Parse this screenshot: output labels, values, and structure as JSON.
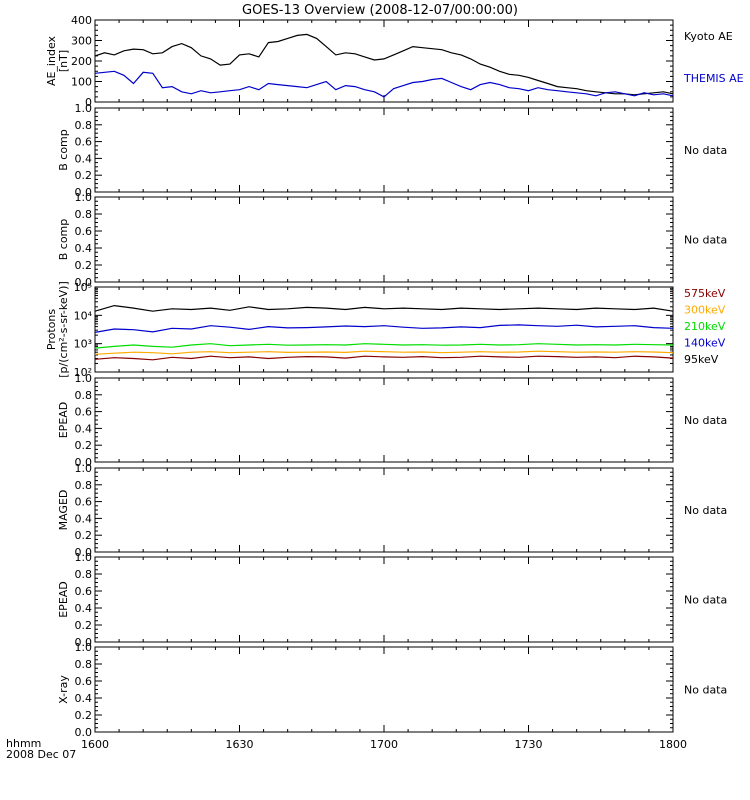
{
  "title": "GOES-13 Overview (2008-12-07/00:00:00)",
  "xaxis": {
    "corner_label_line1": "hhmm",
    "corner_label_line2": "2008 Dec 07",
    "range": [
      0,
      120
    ],
    "ticks": [
      {
        "value": 0,
        "label": "1600"
      },
      {
        "value": 30,
        "label": "1630"
      },
      {
        "value": 60,
        "label": "1700"
      },
      {
        "value": 90,
        "label": "1730"
      },
      {
        "value": 120,
        "label": "1800"
      }
    ]
  },
  "colors": {
    "black": "#000000",
    "blue": "#0000cc",
    "green": "#00dd00",
    "orange": "#ffaa00",
    "darkred": "#880000"
  },
  "chart_data": [
    {
      "type": "line",
      "ylabel_lines": [
        "AE_index",
        "[nT]"
      ],
      "yscale": "linear",
      "ylim": [
        0,
        400
      ],
      "yticks": [
        "0",
        "100",
        "200",
        "300",
        "400"
      ],
      "series": [
        {
          "name": "Kyoto AE",
          "color": "#000000",
          "x": [
            0,
            2,
            4,
            6,
            8,
            10,
            12,
            14,
            16,
            18,
            20,
            22,
            24,
            26,
            28,
            30,
            32,
            34,
            36,
            38,
            40,
            42,
            44,
            46,
            48,
            50,
            52,
            54,
            56,
            58,
            60,
            62,
            64,
            66,
            68,
            70,
            72,
            74,
            76,
            78,
            80,
            82,
            84,
            86,
            88,
            90,
            92,
            94,
            96,
            98,
            100,
            102,
            104,
            106,
            108,
            110,
            112,
            114,
            116,
            118,
            120
          ],
          "y": [
            225,
            240,
            230,
            250,
            258,
            255,
            235,
            240,
            270,
            285,
            265,
            225,
            210,
            180,
            185,
            230,
            235,
            220,
            290,
            295,
            310,
            325,
            330,
            310,
            270,
            230,
            240,
            235,
            220,
            205,
            210,
            230,
            250,
            270,
            265,
            260,
            255,
            240,
            230,
            210,
            185,
            170,
            150,
            135,
            130,
            120,
            105,
            90,
            75,
            70,
            65,
            55,
            50,
            45,
            40,
            40,
            35,
            40,
            45,
            50,
            40
          ]
        },
        {
          "name": "THEMIS AE",
          "color": "#0000cc",
          "x": [
            0,
            2,
            4,
            6,
            8,
            10,
            12,
            14,
            16,
            18,
            20,
            22,
            24,
            26,
            28,
            30,
            32,
            34,
            36,
            38,
            40,
            42,
            44,
            46,
            48,
            50,
            52,
            54,
            56,
            58,
            60,
            62,
            64,
            66,
            68,
            70,
            72,
            74,
            76,
            78,
            80,
            82,
            84,
            86,
            88,
            90,
            92,
            94,
            96,
            98,
            100,
            102,
            104,
            106,
            108,
            110,
            112,
            114,
            116,
            118,
            120
          ],
          "y": [
            140,
            145,
            150,
            130,
            90,
            145,
            140,
            70,
            75,
            50,
            40,
            55,
            45,
            50,
            55,
            60,
            75,
            60,
            90,
            85,
            80,
            75,
            70,
            85,
            100,
            60,
            80,
            75,
            60,
            50,
            25,
            65,
            80,
            95,
            100,
            110,
            115,
            95,
            75,
            60,
            85,
            95,
            85,
            70,
            65,
            55,
            70,
            60,
            55,
            50,
            45,
            40,
            30,
            45,
            50,
            40,
            30,
            45,
            35,
            40,
            30
          ]
        }
      ],
      "legend": [
        {
          "label": "Kyoto AE",
          "color": "#000000"
        },
        {
          "label": "THEMIS AE",
          "color": "#0000cc"
        }
      ]
    },
    {
      "type": "line",
      "ylabel_lines": [
        "B comp"
      ],
      "yscale": "linear",
      "ylim": [
        0,
        1
      ],
      "yticks": [
        "0.0",
        "0.2",
        "0.4",
        "0.6",
        "0.8",
        "1.0"
      ],
      "series": [],
      "legend": [
        {
          "label": "No data",
          "color": "#000000"
        }
      ]
    },
    {
      "type": "line",
      "ylabel_lines": [
        "B comp"
      ],
      "yscale": "linear",
      "ylim": [
        0,
        1
      ],
      "yticks": [
        "0.0",
        "0.2",
        "0.4",
        "0.6",
        "0.8",
        "1.0"
      ],
      "series": [],
      "legend": [
        {
          "label": "No data",
          "color": "#000000"
        }
      ]
    },
    {
      "type": "line",
      "ylabel_lines": [
        "Protons",
        "[p/(cm²-s-sr-keV)]"
      ],
      "yscale": "log",
      "ylim": [
        100,
        100000
      ],
      "yticks_log": [
        {
          "value": 100,
          "label": "10²"
        },
        {
          "value": 1000,
          "label": "10³"
        },
        {
          "value": 10000,
          "label": "10⁴"
        },
        {
          "value": 100000,
          "label": "10⁵"
        }
      ],
      "series": [
        {
          "name": "95keV",
          "color": "#000000",
          "x": [
            0,
            4,
            8,
            12,
            16,
            20,
            24,
            28,
            32,
            36,
            40,
            44,
            48,
            52,
            56,
            60,
            64,
            68,
            72,
            76,
            80,
            84,
            88,
            92,
            96,
            100,
            104,
            108,
            112,
            116,
            120
          ],
          "y": [
            14000,
            22000,
            18000,
            14000,
            17000,
            16000,
            18000,
            15000,
            20000,
            16000,
            17000,
            19000,
            18000,
            16000,
            19000,
            17000,
            18000,
            17000,
            16000,
            18000,
            17000,
            16000,
            17000,
            18000,
            17000,
            16000,
            18000,
            17000,
            16000,
            18000,
            14000
          ]
        },
        {
          "name": "140keV",
          "color": "#0000cc",
          "x": [
            0,
            4,
            8,
            12,
            16,
            20,
            24,
            28,
            32,
            36,
            40,
            44,
            48,
            52,
            56,
            60,
            64,
            68,
            72,
            76,
            80,
            84,
            88,
            92,
            96,
            100,
            104,
            108,
            112,
            116,
            120
          ],
          "y": [
            2500,
            3300,
            3100,
            2600,
            3500,
            3300,
            4300,
            3800,
            3200,
            4000,
            3600,
            3700,
            3900,
            4200,
            4000,
            4300,
            3800,
            3500,
            3600,
            3900,
            3700,
            4400,
            4600,
            4300,
            4100,
            4500,
            3900,
            4100,
            4300,
            3700,
            3500
          ]
        },
        {
          "name": "210keV",
          "color": "#00dd00",
          "x": [
            0,
            4,
            8,
            12,
            16,
            20,
            24,
            28,
            32,
            36,
            40,
            44,
            48,
            52,
            56,
            60,
            64,
            68,
            72,
            76,
            80,
            84,
            88,
            92,
            96,
            100,
            104,
            108,
            112,
            116,
            120
          ],
          "y": [
            700,
            800,
            900,
            800,
            750,
            900,
            1000,
            850,
            900,
            950,
            880,
            900,
            920,
            900,
            1000,
            950,
            900,
            920,
            880,
            900,
            950,
            900,
            920,
            1000,
            950,
            900,
            920,
            900,
            950,
            920,
            900
          ]
        },
        {
          "name": "300keV",
          "color": "#ffaa00",
          "x": [
            0,
            4,
            8,
            12,
            16,
            20,
            24,
            28,
            32,
            36,
            40,
            44,
            48,
            52,
            56,
            60,
            64,
            68,
            72,
            76,
            80,
            84,
            88,
            92,
            96,
            100,
            104,
            108,
            112,
            116,
            120
          ],
          "y": [
            420,
            460,
            500,
            480,
            440,
            500,
            520,
            480,
            500,
            520,
            490,
            500,
            510,
            490,
            540,
            520,
            500,
            510,
            480,
            500,
            520,
            500,
            510,
            540,
            520,
            500,
            510,
            500,
            520,
            510,
            480
          ]
        },
        {
          "name": "575keV",
          "color": "#880000",
          "x": [
            0,
            4,
            8,
            12,
            16,
            20,
            24,
            28,
            32,
            36,
            40,
            44,
            48,
            52,
            56,
            60,
            64,
            68,
            72,
            76,
            80,
            84,
            88,
            92,
            96,
            100,
            104,
            108,
            112,
            116,
            120
          ],
          "y": [
            280,
            320,
            300,
            270,
            330,
            300,
            360,
            320,
            340,
            300,
            330,
            350,
            340,
            310,
            360,
            340,
            330,
            350,
            320,
            330,
            360,
            340,
            330,
            360,
            350,
            330,
            340,
            320,
            360,
            340,
            310
          ]
        }
      ],
      "legend": [
        {
          "label": "575keV",
          "color": "#880000"
        },
        {
          "label": "300keV",
          "color": "#ffaa00"
        },
        {
          "label": "210keV",
          "color": "#00dd00"
        },
        {
          "label": "140keV",
          "color": "#0000cc"
        },
        {
          "label": "95keV",
          "color": "#000000"
        }
      ]
    },
    {
      "type": "line",
      "ylabel_lines": [
        "EPEAD"
      ],
      "yscale": "linear",
      "ylim": [
        0,
        1
      ],
      "yticks": [
        "0.0",
        "0.2",
        "0.4",
        "0.6",
        "0.8",
        "1.0"
      ],
      "series": [],
      "legend": [
        {
          "label": "No data",
          "color": "#000000"
        }
      ]
    },
    {
      "type": "line",
      "ylabel_lines": [
        "MAGED"
      ],
      "yscale": "linear",
      "ylim": [
        0,
        1
      ],
      "yticks": [
        "0.0",
        "0.2",
        "0.4",
        "0.6",
        "0.8",
        "1.0"
      ],
      "series": [],
      "legend": [
        {
          "label": "No data",
          "color": "#000000"
        }
      ]
    },
    {
      "type": "line",
      "ylabel_lines": [
        "EPEAD"
      ],
      "yscale": "linear",
      "ylim": [
        0,
        1
      ],
      "yticks": [
        "0.0",
        "0.2",
        "0.4",
        "0.6",
        "0.8",
        "1.0"
      ],
      "series": [],
      "legend": [
        {
          "label": "No data",
          "color": "#000000"
        }
      ]
    },
    {
      "type": "line",
      "ylabel_lines": [
        "X-ray"
      ],
      "yscale": "linear",
      "ylim": [
        0,
        1
      ],
      "yticks": [
        "0.0",
        "0.2",
        "0.4",
        "0.6",
        "0.8",
        "1.0"
      ],
      "series": [],
      "legend": [
        {
          "label": "No data",
          "color": "#000000"
        }
      ]
    }
  ]
}
